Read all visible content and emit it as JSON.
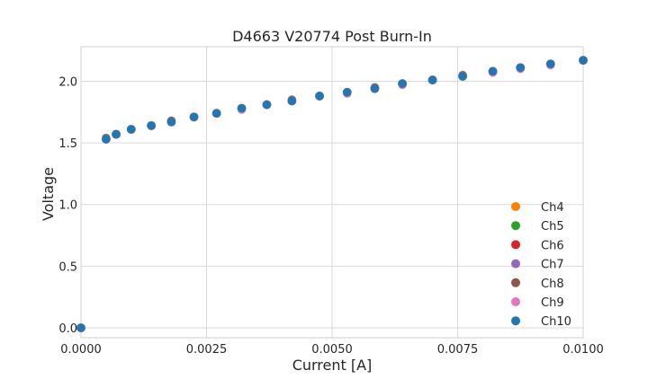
{
  "chart_data": {
    "type": "scatter",
    "title": "D4663 V20774 Post Burn-In",
    "xlabel": "Current [A]",
    "ylabel": "Voltage",
    "xlim": [
      0.0,
      0.01
    ],
    "ylim": [
      -0.08,
      2.28
    ],
    "xticks": [
      0.0,
      0.0025,
      0.005,
      0.0075,
      0.01
    ],
    "xtick_labels": [
      "0.0000",
      "0.0025",
      "0.0050",
      "0.0075",
      "0.0100"
    ],
    "yticks": [
      0.0,
      0.5,
      1.0,
      1.5,
      2.0
    ],
    "ytick_labels": [
      "0.0",
      "0.5",
      "1.0",
      "1.5",
      "2.0"
    ],
    "grid": true,
    "legend_position": "lower-right",
    "x": [
      0.0,
      0.0005,
      0.0007,
      0.001,
      0.0014,
      0.0018,
      0.00225,
      0.0027,
      0.0032,
      0.0037,
      0.0042,
      0.00475,
      0.0053,
      0.00585,
      0.0064,
      0.007,
      0.0076,
      0.0082,
      0.00875,
      0.00935,
      0.01
    ],
    "series": [
      {
        "name": "Ch4",
        "color": "#ff7f0e",
        "values": [
          0.0,
          1.53,
          1.57,
          1.61,
          1.64,
          1.67,
          1.71,
          1.74,
          1.78,
          1.81,
          1.84,
          1.88,
          1.91,
          1.94,
          1.98,
          2.01,
          2.04,
          2.08,
          2.11,
          2.14,
          2.17
        ]
      },
      {
        "name": "Ch5",
        "color": "#2ca02c",
        "values": [
          0.0,
          1.53,
          1.57,
          1.61,
          1.64,
          1.67,
          1.71,
          1.74,
          1.78,
          1.81,
          1.84,
          1.88,
          1.91,
          1.94,
          1.98,
          2.01,
          2.04,
          2.08,
          2.11,
          2.14,
          2.17
        ]
      },
      {
        "name": "Ch6",
        "color": "#d62728",
        "values": [
          0.0,
          1.53,
          1.57,
          1.61,
          1.64,
          1.67,
          1.71,
          1.74,
          1.78,
          1.81,
          1.84,
          1.88,
          1.91,
          1.94,
          1.98,
          2.01,
          2.04,
          2.08,
          2.11,
          2.14,
          2.17
        ]
      },
      {
        "name": "Ch7",
        "color": "#9467bd",
        "values": [
          0.0,
          1.53,
          1.57,
          1.61,
          1.64,
          1.67,
          1.71,
          1.74,
          1.78,
          1.81,
          1.84,
          1.88,
          1.91,
          1.94,
          1.98,
          2.01,
          2.04,
          2.08,
          2.11,
          2.14,
          2.17
        ]
      },
      {
        "name": "Ch8",
        "color": "#8c564b",
        "values": [
          0.0,
          1.54,
          1.57,
          1.61,
          1.64,
          1.68,
          1.71,
          1.74,
          1.78,
          1.81,
          1.85,
          1.88,
          1.91,
          1.95,
          1.98,
          2.01,
          2.05,
          2.08,
          2.11,
          2.14,
          2.17
        ]
      },
      {
        "name": "Ch9",
        "color": "#e377c2",
        "values": [
          0.0,
          1.53,
          1.57,
          1.61,
          1.64,
          1.67,
          1.71,
          1.74,
          1.77,
          1.81,
          1.84,
          1.88,
          1.9,
          1.94,
          1.97,
          2.01,
          2.04,
          2.07,
          2.1,
          2.13,
          2.17
        ]
      },
      {
        "name": "Ch10",
        "color": "#1f77b4",
        "values": [
          0.0,
          1.53,
          1.57,
          1.61,
          1.64,
          1.67,
          1.71,
          1.74,
          1.78,
          1.81,
          1.84,
          1.88,
          1.91,
          1.94,
          1.98,
          2.01,
          2.04,
          2.08,
          2.11,
          2.14,
          2.17
        ]
      }
    ]
  }
}
